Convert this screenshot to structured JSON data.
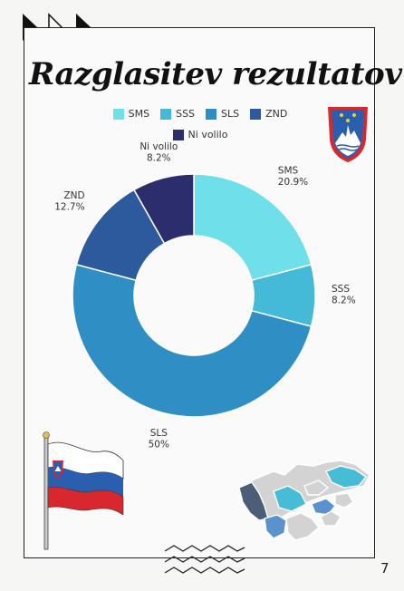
{
  "page": {
    "number": "7"
  },
  "chart_data": {
    "type": "pie",
    "title": "Razglasitev rezultatov",
    "hole": true,
    "legend_position": "top",
    "categories": [
      "SMS",
      "SSS",
      "SLS",
      "ZND",
      "Ni volilo"
    ],
    "values": [
      20.9,
      8.2,
      50,
      12.7,
      8.2
    ],
    "value_labels": [
      "20.9%",
      "8.2%",
      "50%",
      "12.7%",
      "8.2%"
    ],
    "colors": [
      "#6fe0ea",
      "#44bad8",
      "#2f8fc4",
      "#2c5a9c",
      "#2b2d6c"
    ]
  },
  "decor": {
    "flag_colors": [
      "#ffffff",
      "#2a5fb0",
      "#d8282e"
    ],
    "map_colors": [
      "#d3d3d3",
      "#47bcd6",
      "#4a5e78",
      "#5a92cd",
      "#2f8fc4"
    ]
  }
}
